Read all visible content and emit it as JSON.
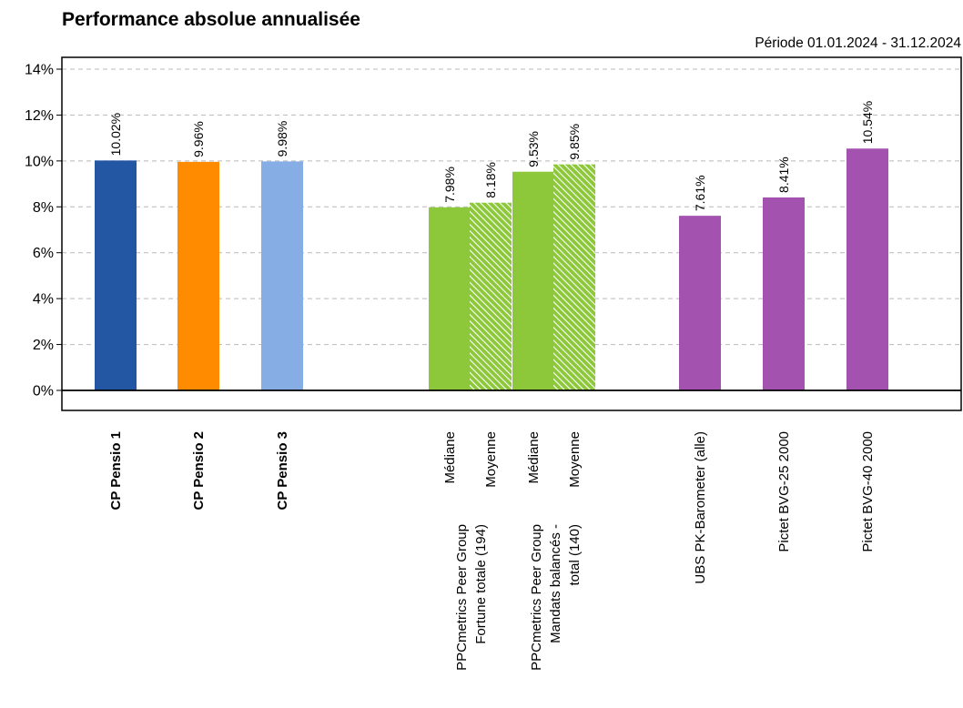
{
  "chart_data": {
    "type": "bar",
    "title": "Performance absolue annualisée",
    "subtitle": "Période 01.01.2024 - 31.12.2024",
    "ylim": [
      0,
      14
    ],
    "yticks": [
      0,
      2,
      4,
      6,
      8,
      10,
      12,
      14
    ],
    "ytick_labels": [
      "0%",
      "2%",
      "4%",
      "6%",
      "8%",
      "10%",
      "12%",
      "14%"
    ],
    "grid": "horizontal dashed",
    "legend": "none",
    "bars": [
      {
        "value": 10.02,
        "label": "10.02%",
        "category": [
          "CP Pensio 1"
        ],
        "bold": true,
        "color": "#2356A3",
        "pattern": "solid"
      },
      {
        "value": 9.96,
        "label": "9.96%",
        "category": [
          "CP Pensio 2"
        ],
        "bold": true,
        "color": "#FF8C00",
        "pattern": "solid"
      },
      {
        "value": 9.98,
        "label": "9.98%",
        "category": [
          "CP Pensio 3"
        ],
        "bold": true,
        "color": "#86AEE5",
        "pattern": "solid"
      },
      {
        "value": 7.98,
        "label": "7.98%",
        "category": [
          "Médiane"
        ],
        "bold": false,
        "color": "#8CC83A",
        "pattern": "solid"
      },
      {
        "value": 8.18,
        "label": "8.18%",
        "category": [
          "Moyenne"
        ],
        "bold": false,
        "color": "#8CC83A",
        "pattern": "hatched"
      },
      {
        "value": 9.53,
        "label": "9.53%",
        "category": [
          "Médiane"
        ],
        "bold": false,
        "color": "#8CC83A",
        "pattern": "solid"
      },
      {
        "value": 9.85,
        "label": "9.85%",
        "category": [
          "Moyenne"
        ],
        "bold": false,
        "color": "#8CC83A",
        "pattern": "hatched"
      },
      {
        "value": 7.61,
        "label": "7.61%",
        "category": [
          "UBS PK-Barometer (alle)"
        ],
        "bold": false,
        "color": "#A352B0",
        "pattern": "solid"
      },
      {
        "value": 8.41,
        "label": "8.41%",
        "category": [
          "Pictet BVG-25 2000"
        ],
        "bold": false,
        "color": "#A352B0",
        "pattern": "solid"
      },
      {
        "value": 10.54,
        "label": "10.54%",
        "category": [
          "Pictet BVG-40 2000"
        ],
        "bold": false,
        "color": "#A352B0",
        "pattern": "solid"
      }
    ],
    "group_labels": [
      {
        "lines": [
          "PPCmetrics Peer Group",
          "Fortune totale (194)"
        ]
      },
      {
        "lines": [
          "PPCmetrics Peer Group",
          "Mandats balancés -",
          "total (140)"
        ]
      }
    ]
  }
}
